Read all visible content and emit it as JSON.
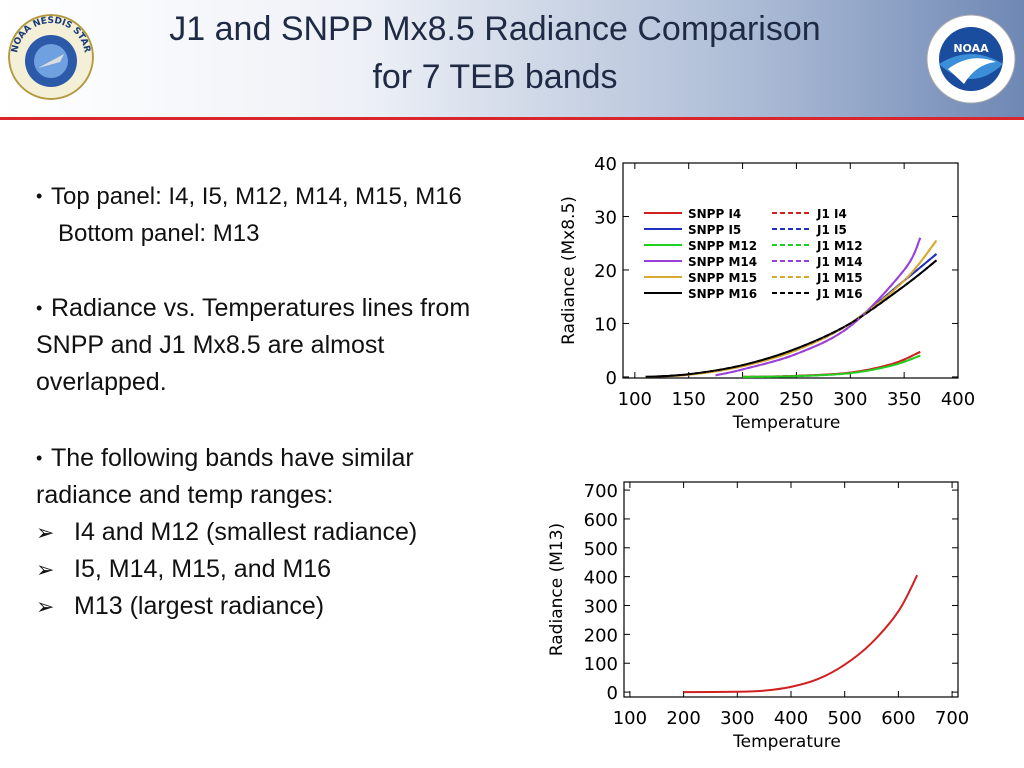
{
  "header": {
    "title_line1": "J1 and SNPP Mx8.5 Radiance Comparison",
    "title_line2": "for 7 TEB bands",
    "left_logo_text": "NOAA NESDIS STAR",
    "right_logo_text": "NOAA"
  },
  "bullets": [
    {
      "marker": "•",
      "text": "Top panel: I4, I5, M12, M14, M15, M16"
    },
    {
      "marker": "",
      "text": "Bottom panel: M13"
    },
    {
      "marker": "•",
      "text": "Radiance vs. Temperatures lines from"
    },
    {
      "marker": "",
      "text": "SNPP and J1 Mx8.5 are almost"
    },
    {
      "marker": "",
      "text": "overlapped."
    },
    {
      "marker": "•",
      "text": " The following bands have similar"
    },
    {
      "marker": "",
      "text": "radiance and temp ranges:"
    },
    {
      "marker": "➢",
      "text": "I4 and M12 (smallest radiance)"
    },
    {
      "marker": "➢",
      "text": "I5, M14, M15, and M16"
    },
    {
      "marker": "➢",
      "text": "M13 (largest radiance)"
    }
  ],
  "chart_data": [
    {
      "type": "line",
      "xlabel": "Temperature",
      "ylabel": "Radiance  (Mx8.5)",
      "xlim": [
        89,
        400
      ],
      "ylim": [
        -0.2,
        40
      ],
      "xticks": [
        100,
        150,
        200,
        250,
        300,
        350,
        400
      ],
      "yticks": [
        0,
        10,
        20,
        30,
        40
      ],
      "grid": false,
      "legend": "upper-left",
      "series": [
        {
          "name": "SNPP I4",
          "color": "#d02020",
          "dash": false,
          "x": [
            200,
            250,
            300,
            340,
            365
          ],
          "y": [
            0,
            0.2,
            0.8,
            2.5,
            4.7
          ]
        },
        {
          "name": "SNPP I5",
          "color": "#2030c0",
          "dash": false,
          "x": [
            110,
            150,
            200,
            250,
            300,
            350,
            380
          ],
          "y": [
            0,
            0.45,
            2.1,
            5.2,
            10,
            18,
            23
          ]
        },
        {
          "name": "SNPP M12",
          "color": "#20d020",
          "dash": false,
          "x": [
            200,
            250,
            300,
            340,
            365
          ],
          "y": [
            0,
            0.15,
            0.7,
            2.2,
            4
          ]
        },
        {
          "name": "SNPP M14",
          "color": "#9a40d8",
          "dash": false,
          "x": [
            175,
            200,
            250,
            300,
            350,
            365
          ],
          "y": [
            0.3,
            1.4,
            4.3,
            9.5,
            20,
            26
          ]
        },
        {
          "name": "SNPP M15",
          "color": "#d8a830",
          "dash": false,
          "x": [
            110,
            150,
            200,
            250,
            300,
            350,
            380
          ],
          "y": [
            0,
            0.4,
            2,
            5,
            10,
            18,
            25.5
          ]
        },
        {
          "name": "SNPP M16",
          "color": "#000000",
          "dash": false,
          "x": [
            110,
            150,
            200,
            250,
            300,
            350,
            380
          ],
          "y": [
            0,
            0.5,
            2.2,
            5.3,
            10,
            17,
            21.8
          ]
        },
        {
          "name": "J1 I4",
          "color": "#d02020",
          "dash": true,
          "x": [
            200,
            250,
            300,
            340,
            365
          ],
          "y": [
            0,
            0.2,
            0.8,
            2.5,
            4.7
          ]
        },
        {
          "name": "J1 I5",
          "color": "#2030c0",
          "dash": true,
          "x": [
            110,
            150,
            200,
            250,
            300,
            350,
            380
          ],
          "y": [
            0,
            0.45,
            2.1,
            5.2,
            10,
            18,
            23
          ]
        },
        {
          "name": "J1 M12",
          "color": "#20d020",
          "dash": true,
          "x": [
            200,
            250,
            300,
            340,
            365
          ],
          "y": [
            0,
            0.15,
            0.7,
            2.2,
            4
          ]
        },
        {
          "name": "J1 M14",
          "color": "#9a40d8",
          "dash": true,
          "x": [
            175,
            200,
            250,
            300,
            350,
            365
          ],
          "y": [
            0.3,
            1.4,
            4.3,
            9.5,
            20,
            26
          ]
        },
        {
          "name": "J1 M15",
          "color": "#d8a830",
          "dash": true,
          "x": [
            110,
            150,
            200,
            250,
            300,
            350,
            380
          ],
          "y": [
            0,
            0.4,
            2,
            5,
            10,
            18,
            25.5
          ]
        },
        {
          "name": "J1 M16",
          "color": "#000000",
          "dash": true,
          "x": [
            110,
            150,
            200,
            250,
            300,
            350,
            380
          ],
          "y": [
            0,
            0.5,
            2.2,
            5.3,
            10,
            17,
            21.8
          ]
        }
      ]
    },
    {
      "type": "line",
      "xlabel": "Temperature",
      "ylabel": "Radiance  (M13)",
      "xlim": [
        89,
        711
      ],
      "ylim": [
        -17,
        728
      ],
      "xticks": [
        100,
        200,
        300,
        400,
        500,
        600,
        700
      ],
      "yticks": [
        0,
        100,
        200,
        300,
        400,
        500,
        600,
        700
      ],
      "grid": false,
      "series": [
        {
          "color": "#d02020",
          "dash": false,
          "x": [
            200,
            300,
            350,
            400,
            450,
            500,
            550,
            600,
            635
          ],
          "y": [
            0,
            1,
            5,
            18,
            45,
            95,
            170,
            280,
            405
          ]
        }
      ]
    }
  ]
}
